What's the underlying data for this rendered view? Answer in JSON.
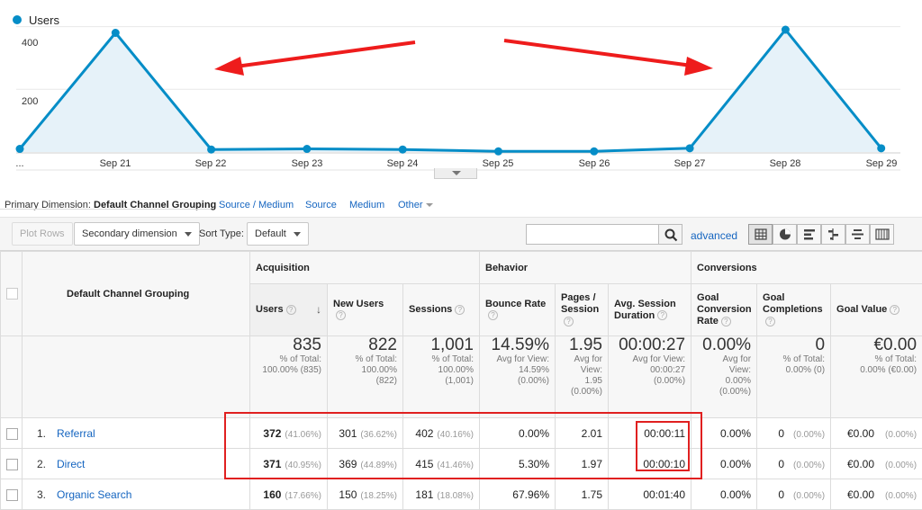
{
  "chart": {
    "legend": "Users",
    "y_ticks": [
      "400",
      "200"
    ],
    "x_ticks": [
      "...",
      "Sep 21",
      "Sep 22",
      "Sep 23",
      "Sep 24",
      "Sep 25",
      "Sep 26",
      "Sep 27",
      "Sep 28",
      "Sep 29"
    ],
    "series_color": "#058dc7",
    "fill_color": "#e6f2f9",
    "arrow_color": "#ee1c1c"
  },
  "chart_data": {
    "type": "area",
    "x": [
      "Sep 20",
      "Sep 21",
      "Sep 22",
      "Sep 23",
      "Sep 24",
      "Sep 25",
      "Sep 26",
      "Sep 27",
      "Sep 28",
      "Sep 29"
    ],
    "series": [
      {
        "name": "Users",
        "values": [
          10,
          380,
          8,
          10,
          8,
          2,
          2,
          12,
          390,
          12
        ]
      }
    ],
    "ylim": [
      0,
      480
    ],
    "grid": true,
    "legend": "top-left"
  },
  "primary_dimension": {
    "label": "Primary Dimension:",
    "active": "Default Channel Grouping",
    "links": [
      "Source / Medium",
      "Source",
      "Medium",
      "Other"
    ]
  },
  "toolbar": {
    "plot_rows": "Plot Rows",
    "secondary_dimension": "Secondary dimension",
    "sort_type_label": "Sort Type:",
    "sort_type_value": "Default",
    "search_value": "",
    "advanced": "advanced"
  },
  "table": {
    "dimension_header": "Default Channel Grouping",
    "groups": {
      "acquisition": "Acquisition",
      "behavior": "Behavior",
      "conversions": "Conversions"
    },
    "columns": {
      "users": "Users",
      "new_users": "New Users",
      "sessions": "Sessions",
      "bounce_rate": "Bounce Rate",
      "pages_session_1": "Pages /",
      "pages_session_2": "Session",
      "avg_dur_1": "Avg. Session",
      "avg_dur_2": "Duration",
      "goal_conv_1": "Goal",
      "goal_conv_2": "Conversion",
      "goal_conv_3": "Rate",
      "goal_comp_1": "Goal",
      "goal_comp_2": "Completions",
      "goal_value": "Goal Value"
    },
    "totals": {
      "users": {
        "big": "835",
        "l1": "% of Total:",
        "l2": "100.00% (835)",
        "l3": ""
      },
      "new_users": {
        "big": "822",
        "l1": "% of Total:",
        "l2": "100.00%",
        "l3": "(822)"
      },
      "sessions": {
        "big": "1,001",
        "l1": "% of Total:",
        "l2": "100.00%",
        "l3": "(1,001)"
      },
      "bounce_rate": {
        "big": "14.59%",
        "l1": "Avg for View:",
        "l2": "14.59%",
        "l3": "(0.00%)"
      },
      "pages": {
        "big": "1.95",
        "l1": "Avg for",
        "l2": "View:",
        "l3": "1.95",
        "l4": "(0.00%)"
      },
      "duration": {
        "big": "00:00:27",
        "l1": "Avg for View:",
        "l2": "00:00:27",
        "l3": "(0.00%)"
      },
      "goal_rate": {
        "big": "0.00%",
        "l1": "Avg for",
        "l2": "View:",
        "l3": "0.00%",
        "l4": "(0.00%)"
      },
      "goal_comp": {
        "big": "0",
        "l1": "% of Total:",
        "l2": "0.00% (0)",
        "l3": ""
      },
      "goal_value": {
        "big": "€0.00",
        "l1": "% of Total:",
        "l2": "0.00% (€0.00)",
        "l3": ""
      }
    },
    "rows": [
      {
        "num": "1.",
        "name": "Referral",
        "users": "372",
        "users_pct": "(41.06%)",
        "new_users": "301",
        "new_users_pct": "(36.62%)",
        "sessions": "402",
        "sessions_pct": "(40.16%)",
        "bounce": "0.00%",
        "pages": "2.01",
        "duration": "00:00:11",
        "goal_rate": "0.00%",
        "goal_comp": "0",
        "goal_comp_pct": "(0.00%)",
        "goal_value": "€0.00",
        "goal_value_pct": "(0.00%)"
      },
      {
        "num": "2.",
        "name": "Direct",
        "users": "371",
        "users_pct": "(40.95%)",
        "new_users": "369",
        "new_users_pct": "(44.89%)",
        "sessions": "415",
        "sessions_pct": "(41.46%)",
        "bounce": "5.30%",
        "pages": "1.97",
        "duration": "00:00:10",
        "goal_rate": "0.00%",
        "goal_comp": "0",
        "goal_comp_pct": "(0.00%)",
        "goal_value": "€0.00",
        "goal_value_pct": "(0.00%)"
      },
      {
        "num": "3.",
        "name": "Organic Search",
        "users": "160",
        "users_pct": "(17.66%)",
        "new_users": "150",
        "new_users_pct": "(18.25%)",
        "sessions": "181",
        "sessions_pct": "(18.08%)",
        "bounce": "67.96%",
        "pages": "1.75",
        "duration": "00:01:40",
        "goal_rate": "0.00%",
        "goal_comp": "0",
        "goal_comp_pct": "(0.00%)",
        "goal_value": "€0.00",
        "goal_value_pct": "(0.00%)"
      }
    ]
  }
}
